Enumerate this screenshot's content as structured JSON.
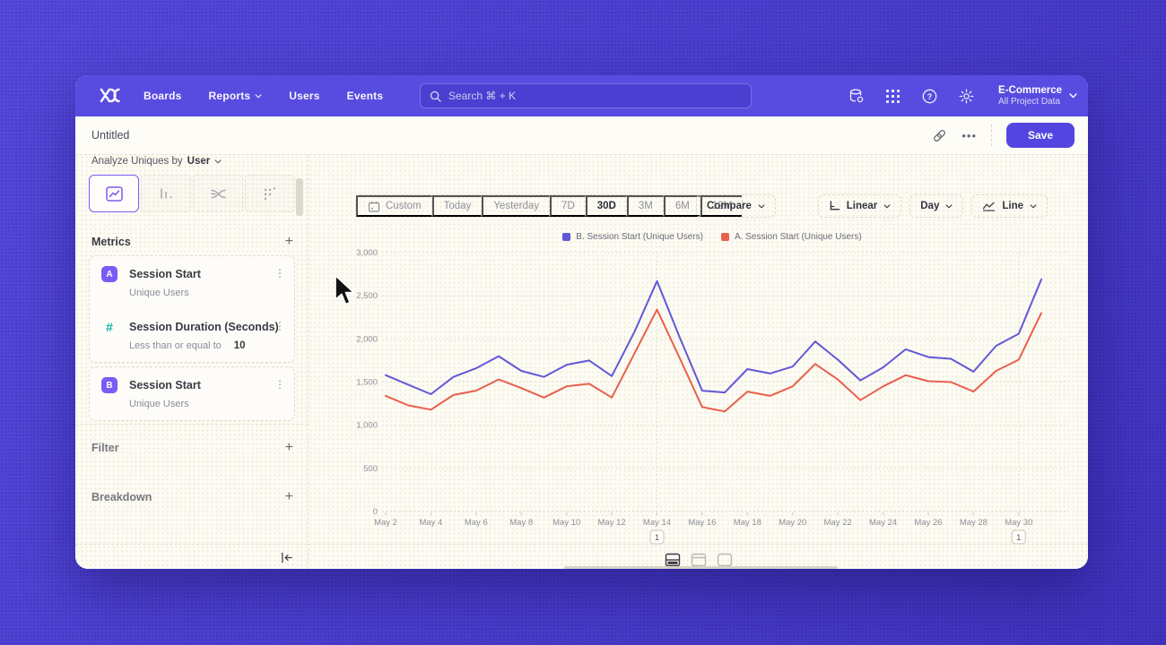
{
  "nav": {
    "logo_icon": "mixpanel-x-logo",
    "items": [
      {
        "label": "Boards",
        "has_chevron": false
      },
      {
        "label": "Reports",
        "has_chevron": true
      },
      {
        "label": "Users",
        "has_chevron": false
      },
      {
        "label": "Events",
        "has_chevron": false
      }
    ],
    "search_placeholder": "Search  ⌘ + K",
    "icons_right": [
      "data-management-icon",
      "apps-grid-icon",
      "help-icon",
      "settings-icon"
    ],
    "project": {
      "name": "E-Commerce",
      "subtitle": "All Project Data"
    }
  },
  "title_bar": {
    "title": "Untitled",
    "more_label": "•••",
    "save_label": "Save"
  },
  "builder": {
    "analyze_prefix": "Analyze Uniques by",
    "analyze_value": "User",
    "chart_type_tabs": [
      {
        "name": "insights-line-tab",
        "selected": true
      },
      {
        "name": "bar-chart-tab",
        "selected": false
      },
      {
        "name": "flows-tab",
        "selected": false
      },
      {
        "name": "metric-tab",
        "selected": false
      }
    ],
    "metrics": {
      "header": "Metrics",
      "add_label": "+",
      "groups": [
        {
          "rows": [
            {
              "badge": "A",
              "badge_color": "#7b5bf5",
              "badge_style": "fill",
              "title": "Session Start",
              "subtitle": "Unique Users",
              "subtitle_value": ""
            },
            {
              "badge": "#",
              "badge_color": "#11b3a2",
              "badge_style": "text",
              "title": "Session Duration (Seconds)",
              "subtitle": "Less than or equal to",
              "subtitle_value": "10"
            }
          ]
        },
        {
          "rows": [
            {
              "badge": "B",
              "badge_color": "#7b5bf5",
              "badge_style": "fill",
              "title": "Session Start",
              "subtitle": "Unique Users",
              "subtitle_value": ""
            }
          ]
        }
      ]
    },
    "filter_label": "Filter",
    "filter_add": "+",
    "breakdown_label": "Breakdown",
    "breakdown_add": "+",
    "collapse_icon": "collapse-left-icon"
  },
  "toolbar": {
    "ranges": [
      "Custom",
      "Today",
      "Yesterday",
      "7D",
      "30D",
      "3M",
      "6M",
      "12M"
    ],
    "active_range": "30D",
    "compare_label": "Compare",
    "scale_label": "Linear",
    "interval_label": "Day",
    "charttype_label": "Line"
  },
  "view_toggles": [
    {
      "name": "chart-panel-view",
      "selected": true
    },
    {
      "name": "table-panel-view",
      "selected": false
    },
    {
      "name": "card-view",
      "selected": false
    }
  ],
  "colors": {
    "accent": "#5346e0",
    "series_b": "#6158d8",
    "series_a": "#e8604c",
    "badge_purple": "#7b5bf5",
    "badge_teal": "#11b3a2"
  },
  "chart_data": {
    "type": "line",
    "x": [
      "May 2",
      "May 3",
      "May 4",
      "May 5",
      "May 6",
      "May 7",
      "May 8",
      "May 9",
      "May 10",
      "May 11",
      "May 12",
      "May 13",
      "May 14",
      "May 15",
      "May 16",
      "May 17",
      "May 18",
      "May 19",
      "May 20",
      "May 21",
      "May 22",
      "May 23",
      "May 24",
      "May 25",
      "May 26",
      "May 27",
      "May 28",
      "May 29",
      "May 30",
      "May 31"
    ],
    "series": [
      {
        "name": "B. Session Start (Unique Users)",
        "color": "#6158d8",
        "values": [
          1580,
          1470,
          1360,
          1560,
          1660,
          1800,
          1630,
          1560,
          1700,
          1750,
          1570,
          2080,
          2670,
          2020,
          1400,
          1380,
          1650,
          1600,
          1680,
          1970,
          1760,
          1520,
          1670,
          1880,
          1790,
          1770,
          1620,
          1920,
          2060,
          2690
        ]
      },
      {
        "name": "A. Session Start (Unique Users)",
        "color": "#e8604c",
        "values": [
          1340,
          1230,
          1180,
          1350,
          1400,
          1530,
          1430,
          1320,
          1450,
          1480,
          1320,
          1830,
          2340,
          1780,
          1210,
          1160,
          1390,
          1340,
          1450,
          1710,
          1530,
          1290,
          1450,
          1580,
          1510,
          1500,
          1390,
          1630,
          1760,
          2300
        ]
      }
    ],
    "title": "",
    "xlabel": "",
    "ylabel": "",
    "ylim": [
      0,
      3000
    ],
    "yticks": [
      0,
      500,
      1000,
      1500,
      2000,
      2500,
      3000
    ],
    "xtick_every": 2,
    "grid": "horizontal-dotted",
    "legend_position": "top-center",
    "annotations": [
      {
        "x": "May 14",
        "label": "1"
      },
      {
        "x": "May 30",
        "label": "1"
      }
    ]
  }
}
